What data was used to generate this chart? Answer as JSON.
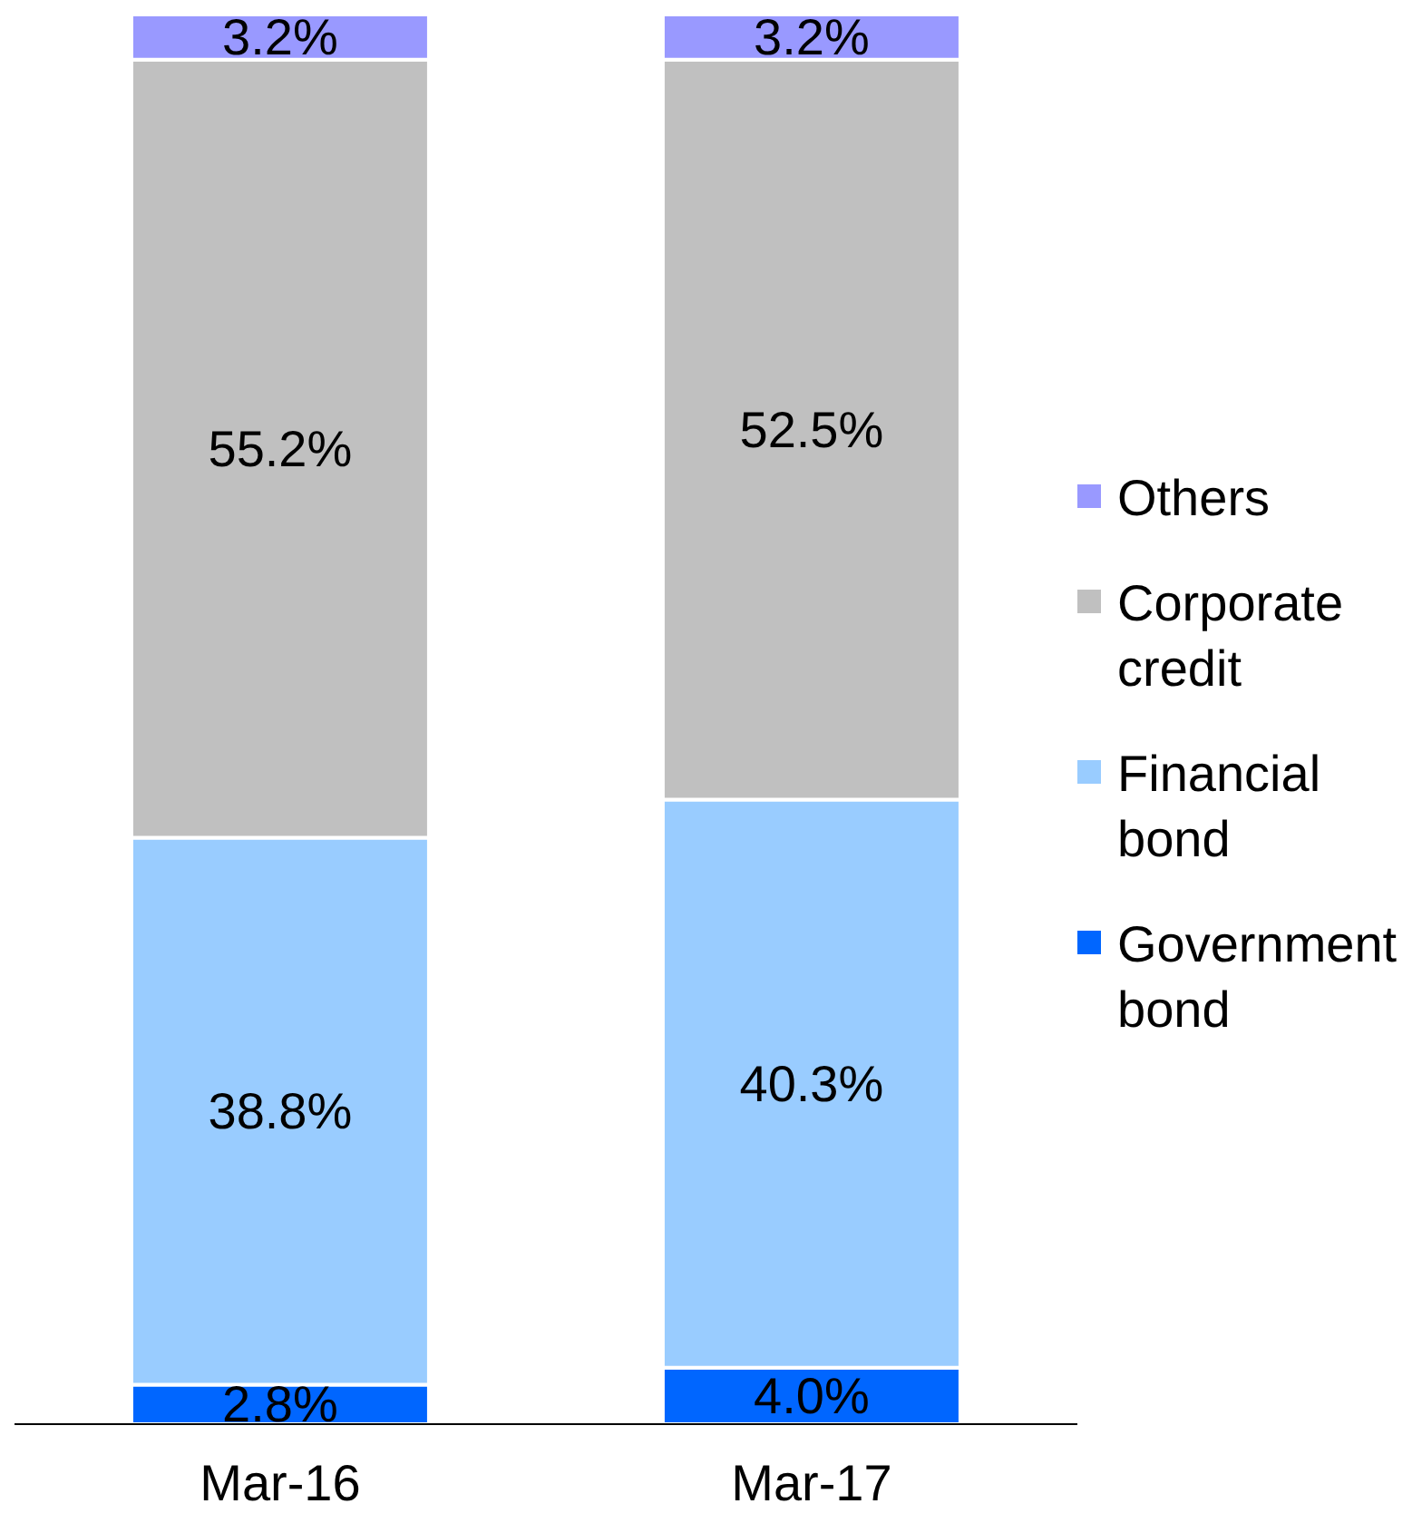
{
  "chart_data": {
    "type": "bar",
    "stacked": true,
    "categories": [
      "Mar-16",
      "Mar-17"
    ],
    "series": [
      {
        "name": "Government bond",
        "color": "#0066ff",
        "values": [
          2.8,
          4.0
        ],
        "value_labels": [
          "2.8%",
          "4.0%"
        ]
      },
      {
        "name": "Financial bond",
        "color": "#99ccff",
        "values": [
          38.8,
          40.3
        ],
        "value_labels": [
          "38.8%",
          "40.3%"
        ]
      },
      {
        "name": "Corporate credit",
        "color": "#c0c0c0",
        "values": [
          55.2,
          52.5
        ],
        "value_labels": [
          "55.2%",
          "52.5%"
        ]
      },
      {
        "name": "Others",
        "color": "#9999ff",
        "values": [
          3.2,
          3.2
        ],
        "value_labels": [
          "3.2%",
          "3.2%"
        ]
      }
    ],
    "legend": "right"
  }
}
